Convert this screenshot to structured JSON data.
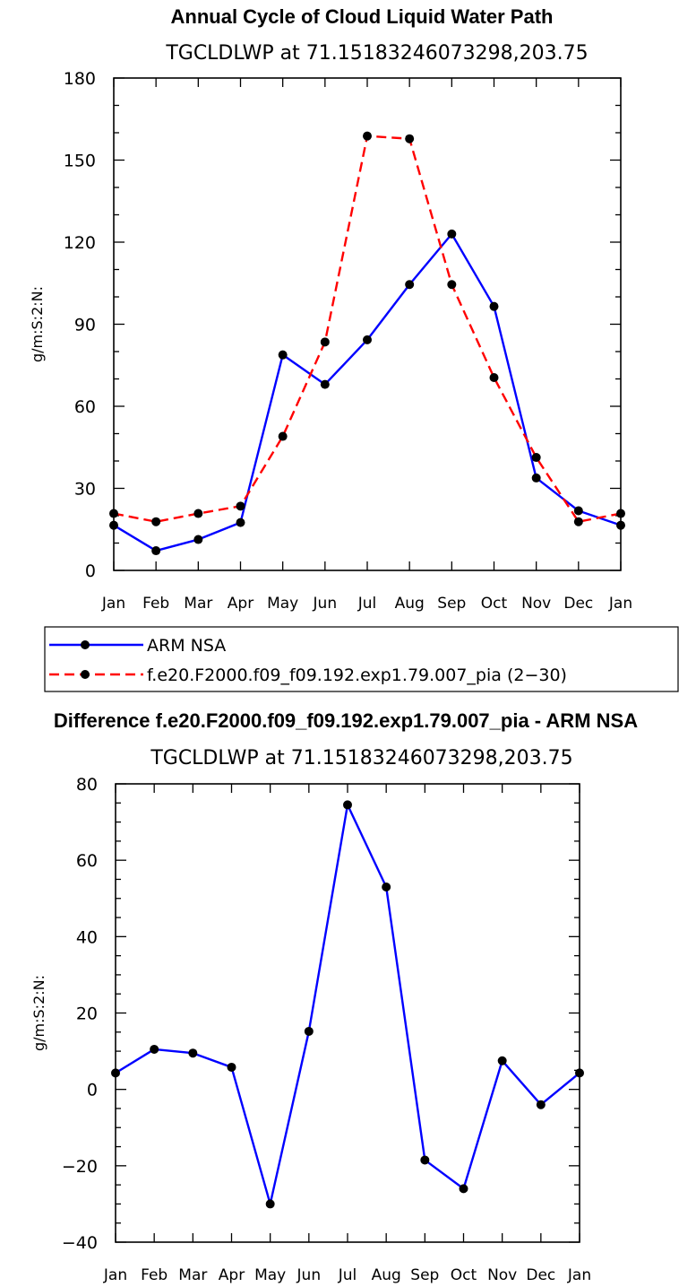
{
  "chart_data": [
    {
      "type": "line",
      "title": "Annual Cycle of Cloud Liquid Water Path",
      "subtitle": "TGCLDLWP at 71.15183246073298,203.75",
      "ylabel": "g/m:S:2:N:",
      "xlabel": "",
      "categories": [
        "Jan",
        "Feb",
        "Mar",
        "Apr",
        "May",
        "Jun",
        "Jul",
        "Aug",
        "Sep",
        "Oct",
        "Nov",
        "Dec",
        "Jan"
      ],
      "ylim": [
        0,
        180
      ],
      "yticks": [
        "0",
        "30",
        "60",
        "90",
        "120",
        "150",
        "180"
      ],
      "series": [
        {
          "name": "ARM NSA",
          "color": "#0000ff",
          "dash": "solid",
          "values": [
            16.5,
            7.2,
            11.3,
            17.5,
            78.8,
            68.0,
            84.3,
            104.5,
            123.0,
            96.5,
            33.8,
            21.8,
            16.5
          ]
        },
        {
          "name": "f.e20.F2000.f09_f09.192.exp1.79.007_pia (2−30)",
          "color": "#ff0000",
          "dash": "dashed",
          "values": [
            20.8,
            17.8,
            20.8,
            23.5,
            49.0,
            83.5,
            158.8,
            157.8,
            104.5,
            70.5,
            41.3,
            17.8,
            20.8
          ]
        }
      ],
      "legend": [
        "ARM NSA",
        "f.e20.F2000.f09_f09.192.exp1.79.007_pia (2−30)"
      ]
    },
    {
      "type": "line",
      "title": "Difference f.e20.F2000.f09_f09.192.exp1.79.007_pia - ARM NSA",
      "subtitle": "TGCLDLWP at 71.15183246073298,203.75",
      "ylabel": "g/m:S:2:N:",
      "xlabel": "",
      "categories": [
        "Jan",
        "Feb",
        "Mar",
        "Apr",
        "May",
        "Jun",
        "Jul",
        "Aug",
        "Sep",
        "Oct",
        "Nov",
        "Dec",
        "Jan"
      ],
      "ylim": [
        -40,
        80
      ],
      "yticks": [
        "−40",
        "−20",
        "0",
        "20",
        "40",
        "60",
        "80"
      ],
      "series": [
        {
          "name": "Difference",
          "color": "#0000ff",
          "dash": "solid",
          "values": [
            4.3,
            10.5,
            9.5,
            5.8,
            -30.0,
            15.2,
            74.5,
            53.0,
            -18.5,
            -26.0,
            7.5,
            -4.0,
            4.3
          ]
        }
      ]
    }
  ]
}
